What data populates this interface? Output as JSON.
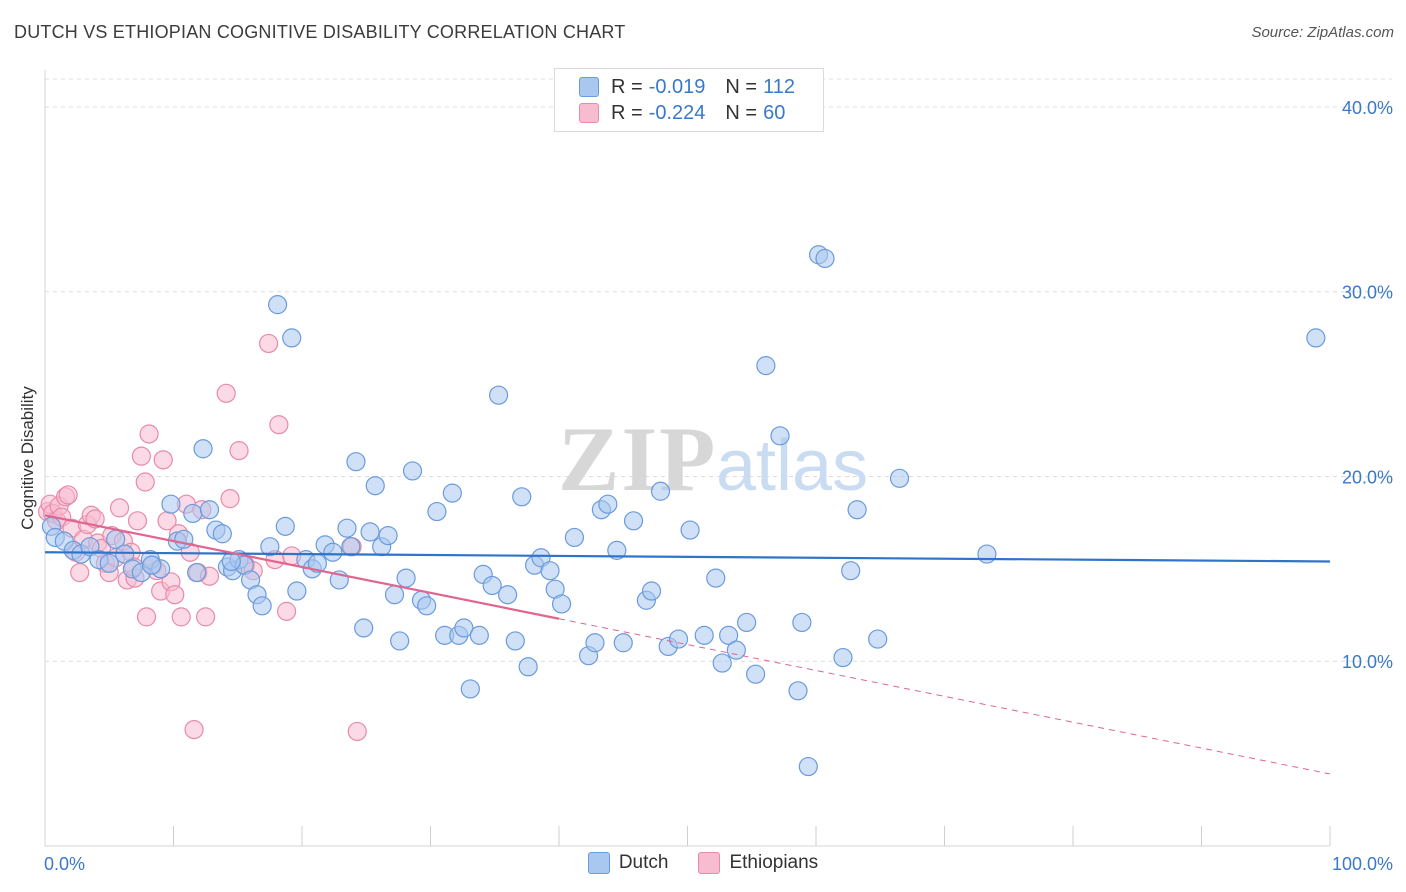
{
  "header": {
    "title": "DUTCH VS ETHIOPIAN COGNITIVE DISABILITY CORRELATION CHART",
    "source": "Source: ZipAtlas.com"
  },
  "watermark": {
    "zip": "ZIP",
    "atlas": "atlas"
  },
  "legend": {
    "rows": [
      {
        "r_label": "R =",
        "r_value": "-0.019",
        "n_label": "N =",
        "n_value": "112"
      },
      {
        "r_label": "R =",
        "r_value": "-0.224",
        "n_label": "N =",
        "n_value": "60"
      }
    ]
  },
  "bottom_legend": {
    "dutch": "Dutch",
    "ethiopians": "Ethiopians"
  },
  "colors": {
    "dutch_fill": "#a9c8f0",
    "dutch_stroke": "#6a9bdc",
    "dutch_line": "#2f74c9",
    "eth_fill": "#f7bcd0",
    "eth_stroke": "#e88aab",
    "eth_line": "#e06591",
    "tick_label": "#3a78c9",
    "grid": "#dcdcdc"
  },
  "chart_data": {
    "type": "scatter",
    "title": "DUTCH VS ETHIOPIAN COGNITIVE DISABILITY CORRELATION CHART",
    "xlabel": "",
    "ylabel": "Cognitive Disability",
    "xlim": [
      0,
      100
    ],
    "ylim": [
      0,
      42
    ],
    "x_tick_labels": [
      "0.0%",
      "100.0%"
    ],
    "y_ticks": [
      10,
      20,
      30,
      40
    ],
    "y_tick_labels": [
      "10.0%",
      "20.0%",
      "30.0%",
      "40.0%"
    ],
    "grid": true,
    "legend_position": "top-center",
    "series": [
      {
        "name": "Dutch",
        "R": -0.019,
        "N": 112,
        "trend": {
          "x": [
            0,
            100
          ],
          "y": [
            15.9,
            15.4
          ],
          "solid_to": 100
        },
        "points": [
          [
            0.5,
            17.3
          ],
          [
            0.8,
            16.7
          ],
          [
            1.5,
            16.5
          ],
          [
            2.2,
            16.0
          ],
          [
            2.8,
            15.8
          ],
          [
            3.5,
            16.2
          ],
          [
            4.2,
            15.5
          ],
          [
            5.0,
            15.3
          ],
          [
            5.5,
            16.6
          ],
          [
            6.2,
            15.8
          ],
          [
            6.8,
            15.0
          ],
          [
            7.5,
            14.8
          ],
          [
            8.2,
            15.5
          ],
          [
            9.0,
            15.0
          ],
          [
            9.8,
            18.5
          ],
          [
            10.3,
            16.5
          ],
          [
            10.8,
            16.6
          ],
          [
            11.5,
            18.0
          ],
          [
            11.8,
            14.8
          ],
          [
            12.3,
            21.5
          ],
          [
            12.8,
            18.2
          ],
          [
            13.3,
            17.1
          ],
          [
            13.8,
            16.9
          ],
          [
            14.2,
            15.1
          ],
          [
            14.6,
            14.9
          ],
          [
            15.1,
            15.5
          ],
          [
            15.5,
            15.2
          ],
          [
            16.0,
            14.4
          ],
          [
            16.5,
            13.6
          ],
          [
            16.9,
            13.0
          ],
          [
            17.5,
            16.2
          ],
          [
            18.1,
            29.3
          ],
          [
            18.7,
            17.3
          ],
          [
            19.2,
            27.5
          ],
          [
            19.6,
            13.8
          ],
          [
            20.3,
            15.5
          ],
          [
            20.8,
            15.0
          ],
          [
            21.2,
            15.3
          ],
          [
            21.8,
            16.3
          ],
          [
            22.4,
            15.9
          ],
          [
            22.9,
            14.4
          ],
          [
            23.5,
            17.2
          ],
          [
            23.8,
            16.2
          ],
          [
            24.2,
            20.8
          ],
          [
            24.8,
            11.8
          ],
          [
            25.3,
            17.0
          ],
          [
            25.7,
            19.5
          ],
          [
            26.2,
            16.2
          ],
          [
            26.7,
            16.8
          ],
          [
            27.2,
            13.6
          ],
          [
            27.6,
            11.1
          ],
          [
            28.1,
            14.5
          ],
          [
            28.6,
            20.3
          ],
          [
            29.3,
            13.3
          ],
          [
            29.7,
            13.0
          ],
          [
            30.5,
            18.1
          ],
          [
            31.1,
            11.4
          ],
          [
            31.7,
            19.1
          ],
          [
            32.2,
            11.4
          ],
          [
            32.6,
            11.8
          ],
          [
            33.1,
            8.5
          ],
          [
            33.8,
            11.4
          ],
          [
            34.1,
            14.7
          ],
          [
            34.8,
            14.1
          ],
          [
            35.3,
            24.4
          ],
          [
            36.0,
            13.6
          ],
          [
            36.6,
            11.1
          ],
          [
            37.1,
            18.9
          ],
          [
            37.6,
            9.7
          ],
          [
            38.1,
            15.2
          ],
          [
            38.6,
            15.6
          ],
          [
            39.3,
            14.9
          ],
          [
            39.7,
            13.9
          ],
          [
            40.2,
            13.1
          ],
          [
            41.2,
            16.7
          ],
          [
            42.3,
            10.3
          ],
          [
            42.8,
            11.0
          ],
          [
            43.3,
            18.2
          ],
          [
            43.8,
            18.5
          ],
          [
            44.5,
            16.0
          ],
          [
            45.8,
            17.6
          ],
          [
            46.8,
            13.3
          ],
          [
            47.2,
            13.8
          ],
          [
            47.9,
            19.2
          ],
          [
            48.5,
            10.8
          ],
          [
            49.3,
            11.2
          ],
          [
            50.2,
            17.1
          ],
          [
            51.3,
            11.4
          ],
          [
            52.2,
            14.5
          ],
          [
            52.7,
            9.9
          ],
          [
            53.2,
            11.4
          ],
          [
            53.8,
            10.6
          ],
          [
            54.6,
            12.1
          ],
          [
            55.3,
            9.3
          ],
          [
            56.1,
            26.0
          ],
          [
            57.2,
            22.2
          ],
          [
            58.6,
            8.4
          ],
          [
            58.9,
            12.1
          ],
          [
            59.4,
            4.3
          ],
          [
            60.2,
            32.0
          ],
          [
            60.7,
            31.8
          ],
          [
            62.1,
            10.2
          ],
          [
            62.7,
            14.9
          ],
          [
            63.2,
            18.2
          ],
          [
            64.8,
            11.2
          ],
          [
            66.5,
            19.9
          ],
          [
            73.3,
            15.8
          ],
          [
            98.9,
            27.5
          ],
          [
            8.3,
            15.2
          ],
          [
            14.5,
            15.4
          ],
          [
            45.0,
            11.0
          ]
        ]
      },
      {
        "name": "Ethiopians",
        "R": -0.224,
        "N": 60,
        "trend": {
          "x": [
            0,
            100
          ],
          "y": [
            17.9,
            3.9
          ],
          "solid_to": 40
        },
        "points": [
          [
            0.2,
            18.1
          ],
          [
            0.4,
            18.5
          ],
          [
            0.6,
            18.0
          ],
          [
            0.9,
            17.6
          ],
          [
            1.1,
            18.4
          ],
          [
            1.3,
            17.8
          ],
          [
            1.6,
            18.9
          ],
          [
            1.8,
            19.0
          ],
          [
            2.1,
            17.2
          ],
          [
            2.4,
            15.9
          ],
          [
            2.7,
            14.8
          ],
          [
            3.0,
            16.6
          ],
          [
            3.3,
            17.4
          ],
          [
            3.6,
            17.9
          ],
          [
            3.9,
            17.7
          ],
          [
            4.1,
            16.4
          ],
          [
            4.4,
            16.1
          ],
          [
            4.7,
            15.3
          ],
          [
            5.0,
            14.8
          ],
          [
            5.2,
            16.8
          ],
          [
            5.5,
            15.6
          ],
          [
            5.8,
            18.3
          ],
          [
            6.1,
            16.5
          ],
          [
            6.4,
            14.4
          ],
          [
            6.7,
            15.9
          ],
          [
            7.0,
            14.5
          ],
          [
            7.2,
            17.6
          ],
          [
            7.5,
            21.1
          ],
          [
            7.8,
            19.7
          ],
          [
            8.1,
            22.3
          ],
          [
            8.4,
            15.2
          ],
          [
            8.7,
            14.9
          ],
          [
            9.0,
            13.8
          ],
          [
            9.2,
            20.9
          ],
          [
            9.5,
            17.6
          ],
          [
            9.8,
            14.3
          ],
          [
            10.1,
            13.6
          ],
          [
            10.4,
            16.9
          ],
          [
            10.6,
            12.4
          ],
          [
            11.0,
            18.5
          ],
          [
            11.3,
            15.9
          ],
          [
            11.6,
            6.3
          ],
          [
            11.9,
            14.8
          ],
          [
            12.2,
            18.2
          ],
          [
            12.5,
            12.4
          ],
          [
            12.8,
            14.6
          ],
          [
            14.1,
            24.5
          ],
          [
            14.4,
            18.8
          ],
          [
            15.1,
            21.4
          ],
          [
            15.6,
            15.2
          ],
          [
            16.2,
            14.9
          ],
          [
            17.4,
            27.2
          ],
          [
            17.9,
            15.5
          ],
          [
            18.2,
            22.8
          ],
          [
            18.8,
            12.7
          ],
          [
            19.2,
            15.7
          ],
          [
            23.9,
            16.2
          ],
          [
            24.3,
            6.2
          ],
          [
            7.9,
            12.4
          ],
          [
            6.9,
            15.1
          ]
        ]
      }
    ]
  }
}
